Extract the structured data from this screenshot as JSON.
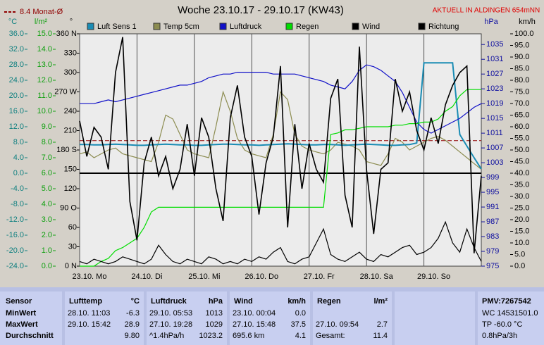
{
  "chart_data": {
    "type": "line",
    "title": "Woche 23.10.17 - 29.10.17 (KW43)",
    "annotation": "AKTUELL IN ALDINGEN 654mNN",
    "grid": true,
    "zero_line": true,
    "reference": {
      "label": "8.4 Monat-Ø",
      "value": 8.4,
      "axis": "temp",
      "color": "#900000"
    },
    "x": [
      0,
      3,
      6,
      9,
      12,
      15,
      18,
      21,
      24,
      27,
      30,
      33,
      36,
      39,
      42,
      45,
      48,
      51,
      54,
      57,
      60,
      63,
      66,
      69,
      72,
      75,
      78,
      81,
      84,
      87,
      90,
      93,
      96,
      99,
      102,
      105,
      108,
      111,
      114,
      117,
      120,
      123,
      126,
      129,
      132,
      135,
      138,
      141,
      144,
      147,
      150,
      153,
      156,
      159,
      162,
      165,
      168
    ],
    "xlim": [
      0,
      168
    ],
    "xticks": [
      {
        "value": 0,
        "label": "23.10. Mo"
      },
      {
        "value": 24,
        "label": "24.10. Di"
      },
      {
        "value": 48,
        "label": "25.10. Mi"
      },
      {
        "value": 72,
        "label": "26.10. Do"
      },
      {
        "value": 96,
        "label": "27.10. Fr"
      },
      {
        "value": 120,
        "label": "28.10. Sa"
      },
      {
        "value": 144,
        "label": "29.10. So"
      }
    ],
    "axes": {
      "temp": {
        "unit": "°C",
        "color": "#108080",
        "lim": [
          -24,
          36
        ],
        "ticks": [
          {
            "value": 36,
            "label": "36.0"
          },
          {
            "value": 32,
            "label": "32.0"
          },
          {
            "value": 28,
            "label": "28.0"
          },
          {
            "value": 24,
            "label": "24.0"
          },
          {
            "value": 20,
            "label": "20.0"
          },
          {
            "value": 16,
            "label": "16.0"
          },
          {
            "value": 12,
            "label": "12.0"
          },
          {
            "value": 8,
            "label": "8.0"
          },
          {
            "value": 4,
            "label": "4.0"
          },
          {
            "value": 0,
            "label": "0.0"
          },
          {
            "value": -4,
            "label": "-4.0"
          },
          {
            "value": -8,
            "label": "-8.0"
          },
          {
            "value": -12,
            "label": "-12.0"
          },
          {
            "value": -16,
            "label": "-16.0"
          },
          {
            "value": -20,
            "label": "-20.0"
          },
          {
            "value": -24,
            "label": "-24.0"
          }
        ]
      },
      "rain": {
        "unit": "l/m²",
        "color": "#10a010",
        "lim": [
          0,
          15
        ],
        "ticks": [
          {
            "value": 15,
            "label": "15.0"
          },
          {
            "value": 14,
            "label": "14.0"
          },
          {
            "value": 13,
            "label": "13.0"
          },
          {
            "value": 12,
            "label": "12.0"
          },
          {
            "value": 11,
            "label": "11.0"
          },
          {
            "value": 10,
            "label": "10.0"
          },
          {
            "value": 9,
            "label": "9.0"
          },
          {
            "value": 8,
            "label": "8.0"
          },
          {
            "value": 7,
            "label": "7.0"
          },
          {
            "value": 6,
            "label": "6.0"
          },
          {
            "value": 5,
            "label": "5.0"
          },
          {
            "value": 4,
            "label": "4.0"
          },
          {
            "value": 3,
            "label": "3.0"
          },
          {
            "value": 2,
            "label": "2.0"
          },
          {
            "value": 1,
            "label": "1.0"
          },
          {
            "value": 0,
            "label": "0.0"
          }
        ]
      },
      "dir": {
        "unit": "°",
        "color": "#000000",
        "lim": [
          0,
          360
        ],
        "ticks": [
          {
            "value": 360,
            "label": "360 N"
          },
          330,
          300,
          {
            "value": 270,
            "label": "270 W"
          },
          240,
          210,
          {
            "value": 180,
            "label": "180 S"
          },
          150,
          120,
          {
            "value": 90,
            "label": "90 O"
          },
          60,
          30,
          {
            "value": 0,
            "label": "0 N"
          }
        ]
      },
      "press": {
        "unit": "hPa",
        "color": "#1010a0",
        "lim": [
          975,
          1037.9
        ],
        "ticks": [
          1035,
          1031,
          1027,
          1023,
          1019,
          1015,
          1011,
          1007,
          1003,
          999,
          995,
          991,
          987,
          983,
          979,
          975
        ]
      },
      "wind": {
        "unit": "km/h",
        "color": "#000000",
        "lim": [
          0,
          100
        ],
        "ticks": [
          {
            "value": 100,
            "label": "100.0"
          },
          {
            "value": 95,
            "label": "95.0"
          },
          {
            "value": 90,
            "label": "90.0"
          },
          {
            "value": 85,
            "label": "85.0"
          },
          {
            "value": 80,
            "label": "80.0"
          },
          {
            "value": 75,
            "label": "75.0"
          },
          {
            "value": 70,
            "label": "70.0"
          },
          {
            "value": 65,
            "label": "65.0"
          },
          {
            "value": 60,
            "label": "60.0"
          },
          {
            "value": 55,
            "label": "55.0"
          },
          {
            "value": 50,
            "label": "50.0"
          },
          {
            "value": 45,
            "label": "45.0"
          },
          {
            "value": 40,
            "label": "40.0"
          },
          {
            "value": 35,
            "label": "35.0"
          },
          {
            "value": 30,
            "label": "30.0"
          },
          {
            "value": 25,
            "label": "25.0"
          },
          {
            "value": 20,
            "label": "20.0"
          },
          {
            "value": 15,
            "label": "15.0"
          },
          {
            "value": 10,
            "label": "10.0"
          },
          {
            "value": 5,
            "label": "5.0"
          },
          {
            "value": 0,
            "label": "0.0"
          }
        ]
      }
    },
    "series": [
      {
        "name": "Luft Sens 1",
        "color": "#1a8cb4",
        "axis": "temp",
        "values": [
          7.4,
          7.4,
          7.3,
          7.3,
          7.4,
          7.5,
          7.4,
          7.3,
          7.2,
          7.2,
          7.3,
          7.4,
          7.5,
          7.4,
          7.3,
          7.3,
          7.2,
          7.2,
          7.3,
          7.4,
          7.5,
          7.5,
          7.4,
          7.3,
          7.3,
          7.2,
          7.3,
          7.4,
          7.5,
          7.6,
          7.5,
          7.4,
          7.3,
          7.3,
          7.4,
          7.4,
          7.3,
          7.2,
          7.3,
          7.4,
          7.5,
          7.4,
          7.3,
          7.2,
          7.2,
          7.3,
          7.4,
          7.8,
          28.5,
          28.5,
          28.5,
          28.5,
          28.5,
          10,
          7,
          4,
          1.1
        ]
      },
      {
        "name": "Temp 5cm",
        "color": "#8c8c50",
        "axis": "temp",
        "values": [
          5,
          5.5,
          4,
          5,
          6,
          6.5,
          5,
          4.5,
          4,
          3.5,
          3,
          8,
          15,
          14,
          10,
          6,
          5,
          4.5,
          4,
          12,
          21,
          16,
          9,
          6,
          5,
          4.5,
          4,
          10,
          21,
          19,
          10,
          7,
          6,
          5.5,
          5,
          6,
          8,
          7.5,
          7,
          6,
          3,
          2.5,
          2,
          5,
          9,
          8,
          6,
          7,
          8,
          9,
          9.5,
          8.5,
          7,
          5.5,
          4,
          2.5,
          1
        ]
      },
      {
        "name": "Luftdruck",
        "color": "#1010c8",
        "axis": "press",
        "values": [
          1019,
          1019,
          1019,
          1019.5,
          1020,
          1019.5,
          1020,
          1020.5,
          1021,
          1021.5,
          1022,
          1022.5,
          1023,
          1023.5,
          1024,
          1024,
          1024.5,
          1025,
          1026,
          1026.5,
          1027,
          1027,
          1027.5,
          1027.5,
          1027.5,
          1027.5,
          1027.5,
          1027,
          1027,
          1027,
          1027,
          1026.5,
          1026,
          1025.5,
          1025,
          1024,
          1023.5,
          1023,
          1025,
          1028,
          1029.5,
          1029,
          1028,
          1026.5,
          1025,
          1022,
          1018,
          1014,
          1012,
          1011,
          1012,
          1013,
          1014,
          1015,
          1016.5,
          1018,
          1019
        ]
      },
      {
        "name": "Regen",
        "color": "#00dd00",
        "axis": "rain",
        "values": [
          0,
          0,
          0,
          0.3,
          0.5,
          1,
          1.2,
          1.5,
          1.8,
          2.5,
          3.5,
          3.8,
          3.8,
          3.8,
          3.8,
          3.8,
          3.8,
          3.8,
          3.8,
          3.8,
          3.8,
          3.8,
          3.8,
          3.8,
          3.8,
          3.8,
          3.8,
          3.8,
          3.8,
          3.8,
          3.8,
          3.8,
          3.8,
          3.8,
          3.8,
          8.5,
          8.6,
          8.8,
          8.8,
          8.9,
          9,
          9,
          9,
          9,
          9.1,
          9.1,
          9.2,
          9.2,
          9.3,
          9.3,
          9.5,
          10,
          10.3,
          11,
          11.4,
          11.4,
          11.4
        ]
      },
      {
        "name": "Wind",
        "color": "#000000",
        "axis": "wind",
        "values": [
          2,
          1,
          3,
          2,
          1,
          2,
          4,
          3,
          2,
          1,
          3,
          9,
          5,
          2,
          1,
          3,
          2,
          1,
          4,
          3,
          1,
          2,
          1,
          3,
          2,
          4,
          3,
          6,
          8,
          2,
          1,
          3,
          4,
          10,
          16,
          5,
          3,
          2,
          4,
          6,
          3,
          2,
          5,
          4,
          6,
          8,
          9,
          5,
          6,
          8,
          12,
          19,
          10,
          6,
          16,
          8,
          2
        ]
      },
      {
        "name": "Richtung",
        "color": "#000000",
        "axis": "dir",
        "values": [
          225,
          170,
          215,
          200,
          150,
          300,
          355,
          100,
          40,
          160,
          200,
          140,
          170,
          120,
          150,
          220,
          140,
          230,
          200,
          120,
          70,
          230,
          280,
          200,
          170,
          80,
          160,
          200,
          310,
          60,
          220,
          120,
          190,
          150,
          130,
          260,
          290,
          110,
          60,
          340,
          150,
          50,
          150,
          160,
          290,
          240,
          270,
          210,
          180,
          230,
          190,
          250,
          280,
          300,
          310,
          20,
          140
        ]
      }
    ]
  },
  "table": {
    "row_header": "Sensor",
    "columns": [
      {
        "title": "Lufttemp",
        "unit": "°C"
      },
      {
        "title": "Luftdruck",
        "unit": "hPa"
      },
      {
        "title": "Wind",
        "unit": "km/h"
      },
      {
        "title": "Regen",
        "unit": "l/m²"
      }
    ],
    "rows": [
      {
        "label": "MinWert",
        "cells": [
          {
            "when": "28.10. 11:03",
            "value": "-6.3"
          },
          {
            "when": "29.10. 05:53",
            "value": "1013"
          },
          {
            "when": "23.10. 00:04",
            "value": "0.0"
          },
          null
        ]
      },
      {
        "label": "MaxWert",
        "cells": [
          {
            "when": "29.10. 15:42",
            "value": "28.9"
          },
          {
            "when": "27.10. 19:28",
            "value": "1029"
          },
          {
            "when": "27.10. 15:48",
            "value": "37.5"
          },
          {
            "when": "27.10. 09:54",
            "value": "2.7"
          }
        ]
      },
      {
        "label": "Durchschnitt",
        "cells": [
          {
            "value": "9.80"
          },
          {
            "when": "^1.4hPa/h",
            "value": "1023.2"
          },
          {
            "when": "695.6 km",
            "value": "4.1"
          },
          {
            "when": "Gesamt:",
            "value": "11.4"
          }
        ]
      }
    ],
    "side": [
      "PMV:7267542",
      "WC 14531501.0",
      "TP -60.0 °C",
      "0.8hPa/3h"
    ]
  }
}
